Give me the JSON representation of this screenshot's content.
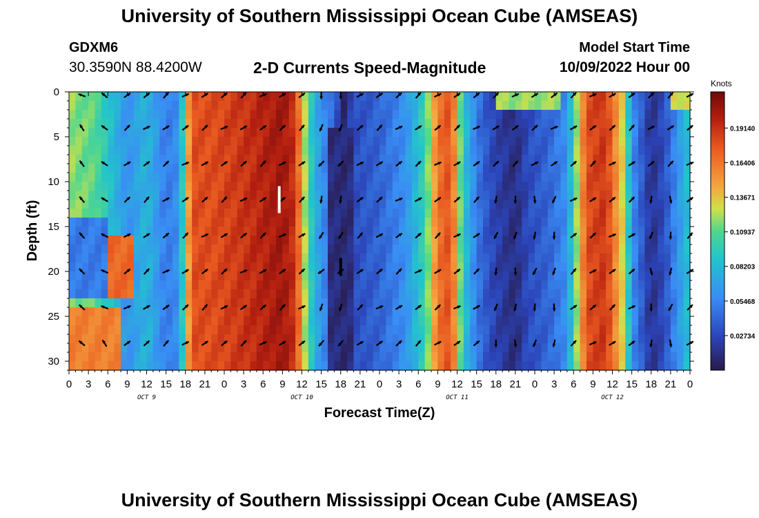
{
  "header": {
    "title": "University of Southern Mississippi Ocean Cube (AMSEAS)",
    "station": "GDXM6",
    "coords": "30.3590N  88.4200W",
    "subtitle": "2-D Currents Speed-Magnitude",
    "model_start_label": "Model Start Time",
    "model_start_value": "10/09/2022 Hour 00"
  },
  "footer": {
    "title": "University of Southern Mississippi Ocean Cube (AMSEAS)"
  },
  "chart_data": {
    "type": "heatmap",
    "title": "2-D Currents Speed-Magnitude",
    "xlabel": "Forecast Time(Z)",
    "ylabel": "Depth (ft)",
    "x_ticks": [
      "0",
      "3",
      "6",
      "9",
      "12",
      "15",
      "18",
      "21",
      "0",
      "3",
      "6",
      "9",
      "12",
      "15",
      "18",
      "21",
      "0",
      "3",
      "6",
      "9",
      "12",
      "15",
      "18",
      "21",
      "0",
      "3",
      "6",
      "9",
      "12",
      "15",
      "18",
      "21",
      "0"
    ],
    "x_hours": [
      0,
      3,
      6,
      9,
      12,
      15,
      18,
      21,
      24,
      27,
      30,
      33,
      36,
      39,
      42,
      45,
      48,
      51,
      54,
      57,
      60,
      63,
      66,
      69,
      72,
      75,
      78,
      81,
      84,
      87,
      90,
      93,
      96
    ],
    "day_labels": [
      {
        "hour": 12,
        "label": "OCT 9"
      },
      {
        "hour": 36,
        "label": "OCT 10"
      },
      {
        "hour": 60,
        "label": "OCT 11"
      },
      {
        "hour": 84,
        "label": "OCT 12"
      }
    ],
    "y_ticks": [
      "0",
      "5",
      "10",
      "15",
      "20",
      "25",
      "30"
    ],
    "y_values": [
      0,
      5,
      10,
      15,
      20,
      25,
      30
    ],
    "xlim": [
      0,
      96
    ],
    "ylim": [
      0,
      31
    ],
    "colorbar": {
      "label": "Knots",
      "range": [
        0,
        0.22
      ],
      "ticks": [
        "0.19140",
        "0.16406",
        "0.13671",
        "0.10937",
        "0.08203",
        "0.05468",
        "0.02734"
      ],
      "tick_values": [
        0.1914,
        0.16406,
        0.13671,
        0.10937,
        0.08203,
        0.05468,
        0.02734
      ]
    },
    "arrow_depths": [
      0,
      4,
      8,
      12,
      16,
      20,
      24,
      28
    ],
    "arrow_hours": [
      2,
      5.5,
      9,
      12,
      15,
      18,
      21,
      24,
      27,
      30,
      33,
      36,
      39,
      42,
      45,
      48,
      51,
      54,
      57,
      60,
      63,
      66,
      69,
      72,
      75,
      78,
      81,
      84,
      87,
      90,
      93,
      96
    ],
    "speed_profile": [
      [
        0,
        0.12
      ],
      [
        4,
        0.11
      ],
      [
        7,
        0.08
      ],
      [
        9,
        0.06
      ],
      [
        12,
        0.08
      ],
      [
        15,
        0.05
      ],
      [
        17,
        0.06
      ],
      [
        19,
        0.18
      ],
      [
        22,
        0.18
      ],
      [
        27,
        0.19
      ],
      [
        31,
        0.2
      ],
      [
        33,
        0.205
      ],
      [
        35,
        0.19
      ],
      [
        37,
        0.1
      ],
      [
        39,
        0.06
      ],
      [
        41,
        0.04
      ],
      [
        42.5,
        0.01
      ],
      [
        44,
        0.03
      ],
      [
        48,
        0.04
      ],
      [
        52,
        0.06
      ],
      [
        55,
        0.1
      ],
      [
        57,
        0.165
      ],
      [
        59,
        0.18
      ],
      [
        61,
        0.09
      ],
      [
        63,
        0.05
      ],
      [
        65,
        0.03
      ],
      [
        67,
        0.02
      ],
      [
        69,
        0.012
      ],
      [
        71,
        0.03
      ],
      [
        74,
        0.04
      ],
      [
        77,
        0.06
      ],
      [
        80,
        0.18
      ],
      [
        83,
        0.19
      ],
      [
        86,
        0.12
      ],
      [
        87,
        0.06
      ],
      [
        89,
        0.03
      ],
      [
        90,
        0.015
      ],
      [
        92,
        0.03
      ],
      [
        94,
        0.06
      ],
      [
        96,
        0.09
      ]
    ]
  }
}
